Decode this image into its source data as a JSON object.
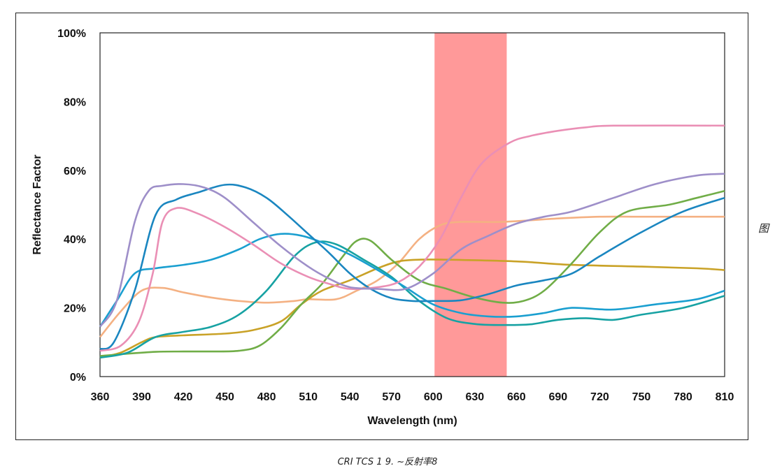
{
  "side_note": "图",
  "caption": "CRI TCS 1 9. ~反射率8",
  "colors": {
    "highlight": "#ff9999",
    "frame": "#222222",
    "plot_border": "#222222"
  },
  "chart_data": {
    "type": "line",
    "title": "",
    "xlabel": "Wavelength (nm)",
    "ylabel": "Reflectance Factor",
    "xlim": [
      360,
      810
    ],
    "ylim": [
      0,
      100
    ],
    "x_ticks": [
      360,
      390,
      420,
      450,
      480,
      510,
      540,
      570,
      600,
      630,
      660,
      690,
      720,
      750,
      780,
      810
    ],
    "y_ticks": [
      0,
      20,
      40,
      60,
      80,
      100
    ],
    "y_tick_labels": [
      "0%",
      "20%",
      "40%",
      "60%",
      "80%",
      "100%"
    ],
    "grid": false,
    "legend": "none",
    "highlight_band": {
      "from": 601,
      "to": 653
    },
    "series": [
      {
        "color": "#f4b183",
        "points": [
          [
            360,
            11.5
          ],
          [
            375,
            19
          ],
          [
            390,
            25
          ],
          [
            405,
            25.8
          ],
          [
            420,
            24.5
          ],
          [
            440,
            23
          ],
          [
            460,
            22
          ],
          [
            480,
            21.5
          ],
          [
            500,
            22
          ],
          [
            510,
            22.5
          ],
          [
            530,
            22.5
          ],
          [
            545,
            25
          ],
          [
            560,
            28
          ],
          [
            575,
            33
          ],
          [
            590,
            40
          ],
          [
            605,
            44
          ],
          [
            620,
            45
          ],
          [
            650,
            45
          ],
          [
            690,
            46
          ],
          [
            720,
            46.5
          ],
          [
            750,
            46.5
          ],
          [
            810,
            46.5
          ]
        ]
      },
      {
        "color": "#c9a227",
        "points": [
          [
            360,
            5.5
          ],
          [
            375,
            7
          ],
          [
            390,
            10
          ],
          [
            400,
            11.5
          ],
          [
            420,
            12
          ],
          [
            450,
            12.5
          ],
          [
            470,
            13.5
          ],
          [
            490,
            16
          ],
          [
            505,
            21
          ],
          [
            520,
            25
          ],
          [
            540,
            28
          ],
          [
            560,
            31.5
          ],
          [
            575,
            33.5
          ],
          [
            590,
            34
          ],
          [
            610,
            34
          ],
          [
            660,
            33.5
          ],
          [
            700,
            32.5
          ],
          [
            750,
            32
          ],
          [
            790,
            31.5
          ],
          [
            810,
            31
          ]
        ]
      },
      {
        "color": "#70ad47",
        "points": [
          [
            360,
            6
          ],
          [
            375,
            6.5
          ],
          [
            400,
            7.2
          ],
          [
            420,
            7.3
          ],
          [
            440,
            7.3
          ],
          [
            460,
            7.5
          ],
          [
            475,
            9
          ],
          [
            490,
            14
          ],
          [
            505,
            21
          ],
          [
            520,
            27
          ],
          [
            535,
            35
          ],
          [
            545,
            39.5
          ],
          [
            555,
            39.5
          ],
          [
            570,
            34
          ],
          [
            590,
            28
          ],
          [
            610,
            25.5
          ],
          [
            630,
            23
          ],
          [
            650,
            21.5
          ],
          [
            665,
            22
          ],
          [
            680,
            25
          ],
          [
            700,
            33
          ],
          [
            720,
            42
          ],
          [
            740,
            48
          ],
          [
            770,
            50
          ],
          [
            790,
            52
          ],
          [
            810,
            54
          ]
        ]
      },
      {
        "color": "#17a2a3",
        "points": [
          [
            360,
            5.5
          ],
          [
            380,
            7
          ],
          [
            400,
            11.5
          ],
          [
            420,
            13
          ],
          [
            440,
            14.5
          ],
          [
            460,
            18
          ],
          [
            480,
            25
          ],
          [
            500,
            35
          ],
          [
            515,
            39
          ],
          [
            530,
            38.5
          ],
          [
            550,
            34
          ],
          [
            570,
            29
          ],
          [
            590,
            22
          ],
          [
            610,
            17
          ],
          [
            630,
            15.3
          ],
          [
            650,
            15
          ],
          [
            670,
            15.2
          ],
          [
            690,
            16.5
          ],
          [
            710,
            17
          ],
          [
            730,
            16.5
          ],
          [
            750,
            18
          ],
          [
            780,
            20
          ],
          [
            810,
            23.5
          ]
        ]
      },
      {
        "color": "#1a9fd0",
        "points": [
          [
            360,
            14.5
          ],
          [
            372,
            22
          ],
          [
            385,
            30
          ],
          [
            400,
            31.5
          ],
          [
            420,
            32.5
          ],
          [
            440,
            34
          ],
          [
            460,
            37
          ],
          [
            475,
            40
          ],
          [
            490,
            41.5
          ],
          [
            505,
            41
          ],
          [
            520,
            39
          ],
          [
            540,
            35.5
          ],
          [
            560,
            31
          ],
          [
            580,
            26
          ],
          [
            600,
            21
          ],
          [
            620,
            18.5
          ],
          [
            640,
            17.5
          ],
          [
            660,
            17.5
          ],
          [
            680,
            18.5
          ],
          [
            700,
            20
          ],
          [
            730,
            19.5
          ],
          [
            760,
            21
          ],
          [
            790,
            22.5
          ],
          [
            810,
            25
          ]
        ]
      },
      {
        "color": "#1a86c0",
        "points": [
          [
            360,
            8
          ],
          [
            370,
            10
          ],
          [
            385,
            25
          ],
          [
            400,
            47
          ],
          [
            415,
            51.5
          ],
          [
            430,
            53.5
          ],
          [
            450,
            55.8
          ],
          [
            465,
            55
          ],
          [
            480,
            52
          ],
          [
            495,
            47
          ],
          [
            510,
            41.5
          ],
          [
            525,
            36
          ],
          [
            540,
            30
          ],
          [
            555,
            25.5
          ],
          [
            570,
            22.8
          ],
          [
            585,
            22
          ],
          [
            600,
            22
          ],
          [
            620,
            22.2
          ],
          [
            640,
            24
          ],
          [
            660,
            26.5
          ],
          [
            680,
            28
          ],
          [
            700,
            30
          ],
          [
            720,
            35
          ],
          [
            750,
            42
          ],
          [
            780,
            48
          ],
          [
            810,
            52
          ]
        ]
      },
      {
        "color": "#ea8fb5",
        "points": [
          [
            360,
            7.5
          ],
          [
            375,
            9
          ],
          [
            388,
            16
          ],
          [
            398,
            30
          ],
          [
            405,
            45
          ],
          [
            415,
            49
          ],
          [
            430,
            47.5
          ],
          [
            450,
            43.5
          ],
          [
            470,
            38.5
          ],
          [
            490,
            33
          ],
          [
            510,
            29
          ],
          [
            525,
            27
          ],
          [
            540,
            25.5
          ],
          [
            560,
            26
          ],
          [
            575,
            27.5
          ],
          [
            590,
            32
          ],
          [
            605,
            40
          ],
          [
            620,
            52
          ],
          [
            635,
            62
          ],
          [
            655,
            68
          ],
          [
            670,
            70
          ],
          [
            690,
            71.5
          ],
          [
            710,
            72.5
          ],
          [
            730,
            73
          ],
          [
            810,
            73
          ]
        ]
      },
      {
        "color": "#9e8fc9",
        "points": [
          [
            360,
            14.5
          ],
          [
            372,
            22
          ],
          [
            385,
            45
          ],
          [
            395,
            54
          ],
          [
            405,
            55.5
          ],
          [
            420,
            56
          ],
          [
            435,
            55
          ],
          [
            450,
            52
          ],
          [
            470,
            45
          ],
          [
            490,
            38
          ],
          [
            510,
            32
          ],
          [
            525,
            28.5
          ],
          [
            540,
            26
          ],
          [
            560,
            25.5
          ],
          [
            580,
            25.5
          ],
          [
            600,
            30
          ],
          [
            620,
            37
          ],
          [
            640,
            41
          ],
          [
            660,
            44.5
          ],
          [
            680,
            46.5
          ],
          [
            700,
            48
          ],
          [
            730,
            52
          ],
          [
            760,
            56
          ],
          [
            790,
            58.5
          ],
          [
            810,
            59
          ]
        ]
      }
    ]
  }
}
